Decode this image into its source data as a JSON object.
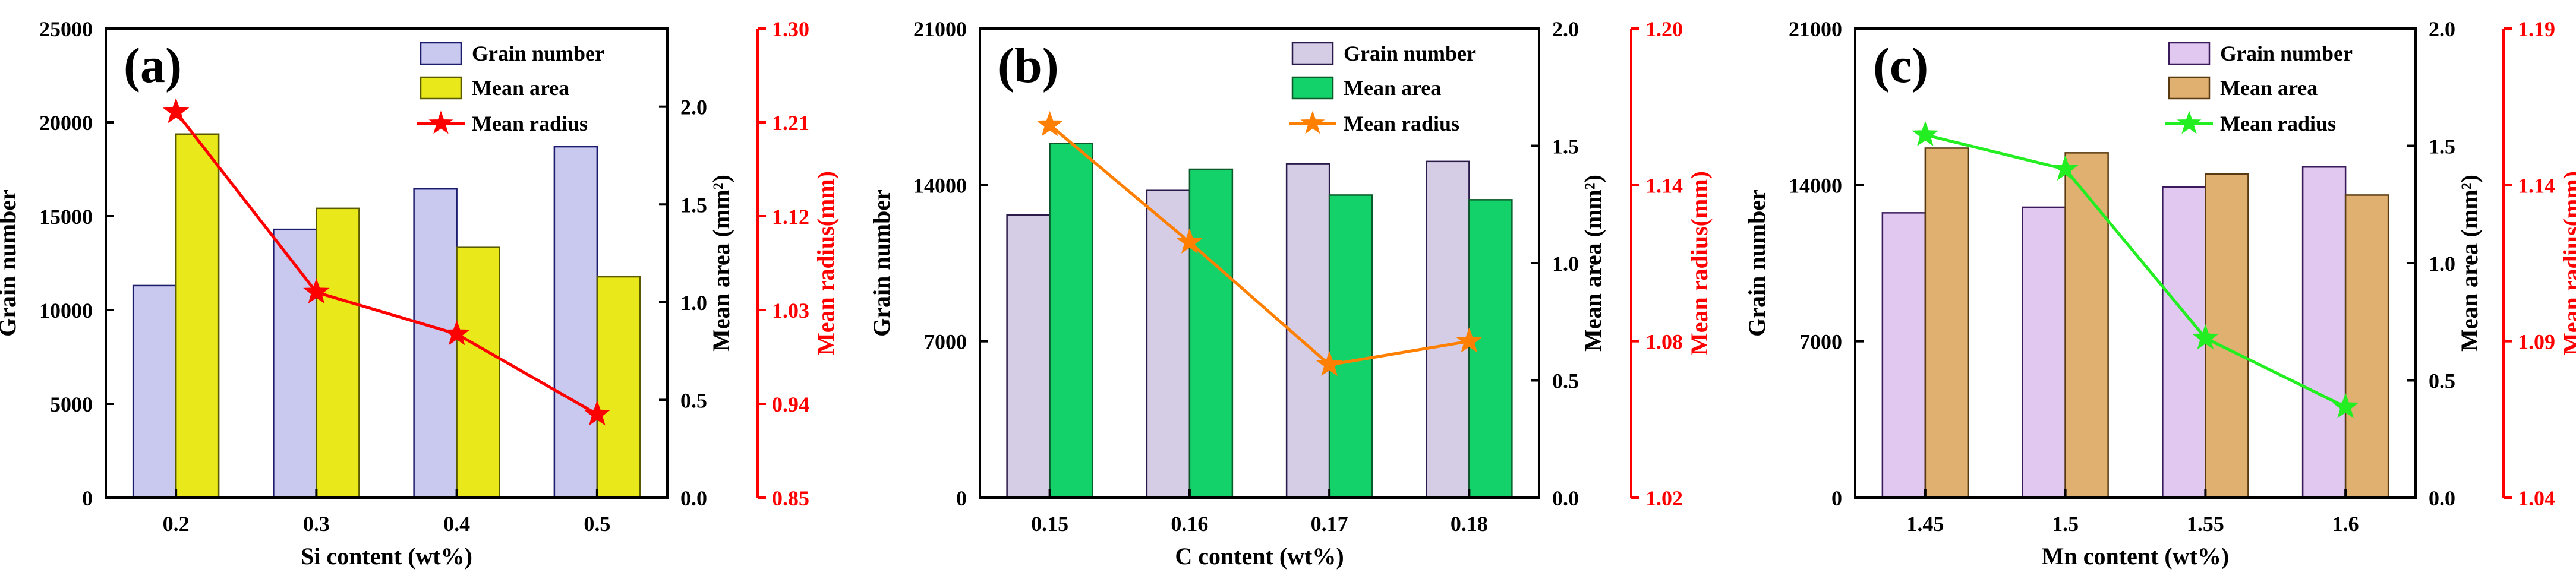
{
  "chart_data": [
    {
      "type": "bar",
      "panel_label": "(a)",
      "categories": [
        "0.2",
        "0.3",
        "0.4",
        "0.5"
      ],
      "xlabel": "Si content (wt%)",
      "left_axis": {
        "label": "Grain number",
        "ylim": [
          0,
          25000
        ],
        "ticks": [
          "0",
          "5000",
          "10000",
          "15000",
          "20000",
          "25000"
        ]
      },
      "right_axis_1": {
        "label": "Mean area (mm²)",
        "ylim": [
          0,
          2.4
        ],
        "ticks": [
          "0.0",
          "0.5",
          "1.0",
          "1.5",
          "2.0"
        ]
      },
      "right_axis_2": {
        "label": "Mean radius(mm)",
        "ylim": [
          0.85,
          1.3
        ],
        "ticks": [
          "0.85",
          "0.94",
          "1.03",
          "1.12",
          "1.21",
          "1.30"
        ],
        "color": "#ff0000"
      },
      "series": [
        {
          "name": "Grain number",
          "kind": "bar",
          "axis": "left",
          "values": [
            11300,
            14300,
            16450,
            18700
          ],
          "color": "#c9c9f0",
          "edge": "#1c1c6e"
        },
        {
          "name": "Mean area",
          "kind": "bar",
          "axis": "right_1",
          "values": [
            1.86,
            1.48,
            1.28,
            1.13
          ],
          "color": "#e8e81a",
          "edge": "#5a5a00"
        },
        {
          "name": "Mean radius",
          "kind": "line",
          "axis": "right_2",
          "values": [
            1.22,
            1.047,
            1.007,
            0.93
          ],
          "color": "#ff0000"
        }
      ],
      "legend_position": "top-right"
    },
    {
      "type": "bar",
      "panel_label": "(b)",
      "categories": [
        "0.15",
        "0.16",
        "0.17",
        "0.18"
      ],
      "xlabel": "C content (wt%)",
      "left_axis": {
        "label": "Grain number",
        "ylim": [
          0,
          21000
        ],
        "ticks": [
          "0",
          "7000",
          "14000",
          "21000"
        ]
      },
      "right_axis_1": {
        "label": "Mean area (mm²)",
        "ylim": [
          0,
          2.0
        ],
        "ticks": [
          "0.0",
          "0.5",
          "1.0",
          "1.5",
          "2.0"
        ]
      },
      "right_axis_2": {
        "label": "Mean radius(mm)",
        "ylim": [
          1.02,
          1.2
        ],
        "ticks": [
          "1.02",
          "1.08",
          "1.14",
          "1.20"
        ],
        "color": "#ff0000"
      },
      "series": [
        {
          "name": "Grain number",
          "kind": "bar",
          "axis": "left",
          "values": [
            12650,
            13750,
            14950,
            15050
          ],
          "color": "#d5cde6",
          "edge": "#2a1a4a"
        },
        {
          "name": "Mean area",
          "kind": "bar",
          "axis": "right_1",
          "values": [
            1.51,
            1.4,
            1.29,
            1.27
          ],
          "color": "#14d26a",
          "edge": "#0a5a2a"
        },
        {
          "name": "Mean radius",
          "kind": "line",
          "axis": "right_2",
          "values": [
            1.163,
            1.118,
            1.071,
            1.08
          ],
          "color": "#ff8000"
        }
      ],
      "legend_position": "top-right"
    },
    {
      "type": "bar",
      "panel_label": "(c)",
      "categories": [
        "1.45",
        "1.5",
        "1.55",
        "1.6"
      ],
      "xlabel": "Mn content (wt%)",
      "left_axis": {
        "label": "Grain number",
        "ylim": [
          0,
          21000
        ],
        "ticks": [
          "0",
          "7000",
          "14000",
          "21000"
        ]
      },
      "right_axis_1": {
        "label": "Mean area (mm²)",
        "ylim": [
          0,
          2.0
        ],
        "ticks": [
          "0.0",
          "0.5",
          "1.0",
          "1.5",
          "2.0"
        ]
      },
      "right_axis_2": {
        "label": "Mean radius(mm)",
        "ylim": [
          1.04,
          1.19
        ],
        "ticks": [
          "1.04",
          "1.09",
          "1.14",
          "1.19"
        ],
        "color": "#ff0000"
      },
      "series": [
        {
          "name": "Grain number",
          "kind": "bar",
          "axis": "left",
          "values": [
            12750,
            13000,
            13900,
            14800
          ],
          "color": "#e0c8f0",
          "edge": "#3a1a5a"
        },
        {
          "name": "Mean area",
          "kind": "bar",
          "axis": "right_1",
          "values": [
            1.49,
            1.47,
            1.38,
            1.29
          ],
          "color": "#e0b070",
          "edge": "#5a3a10"
        },
        {
          "name": "Mean radius",
          "kind": "line",
          "axis": "right_2",
          "values": [
            1.156,
            1.145,
            1.091,
            1.069
          ],
          "color": "#22ee22"
        }
      ],
      "legend_position": "top-right"
    }
  ]
}
